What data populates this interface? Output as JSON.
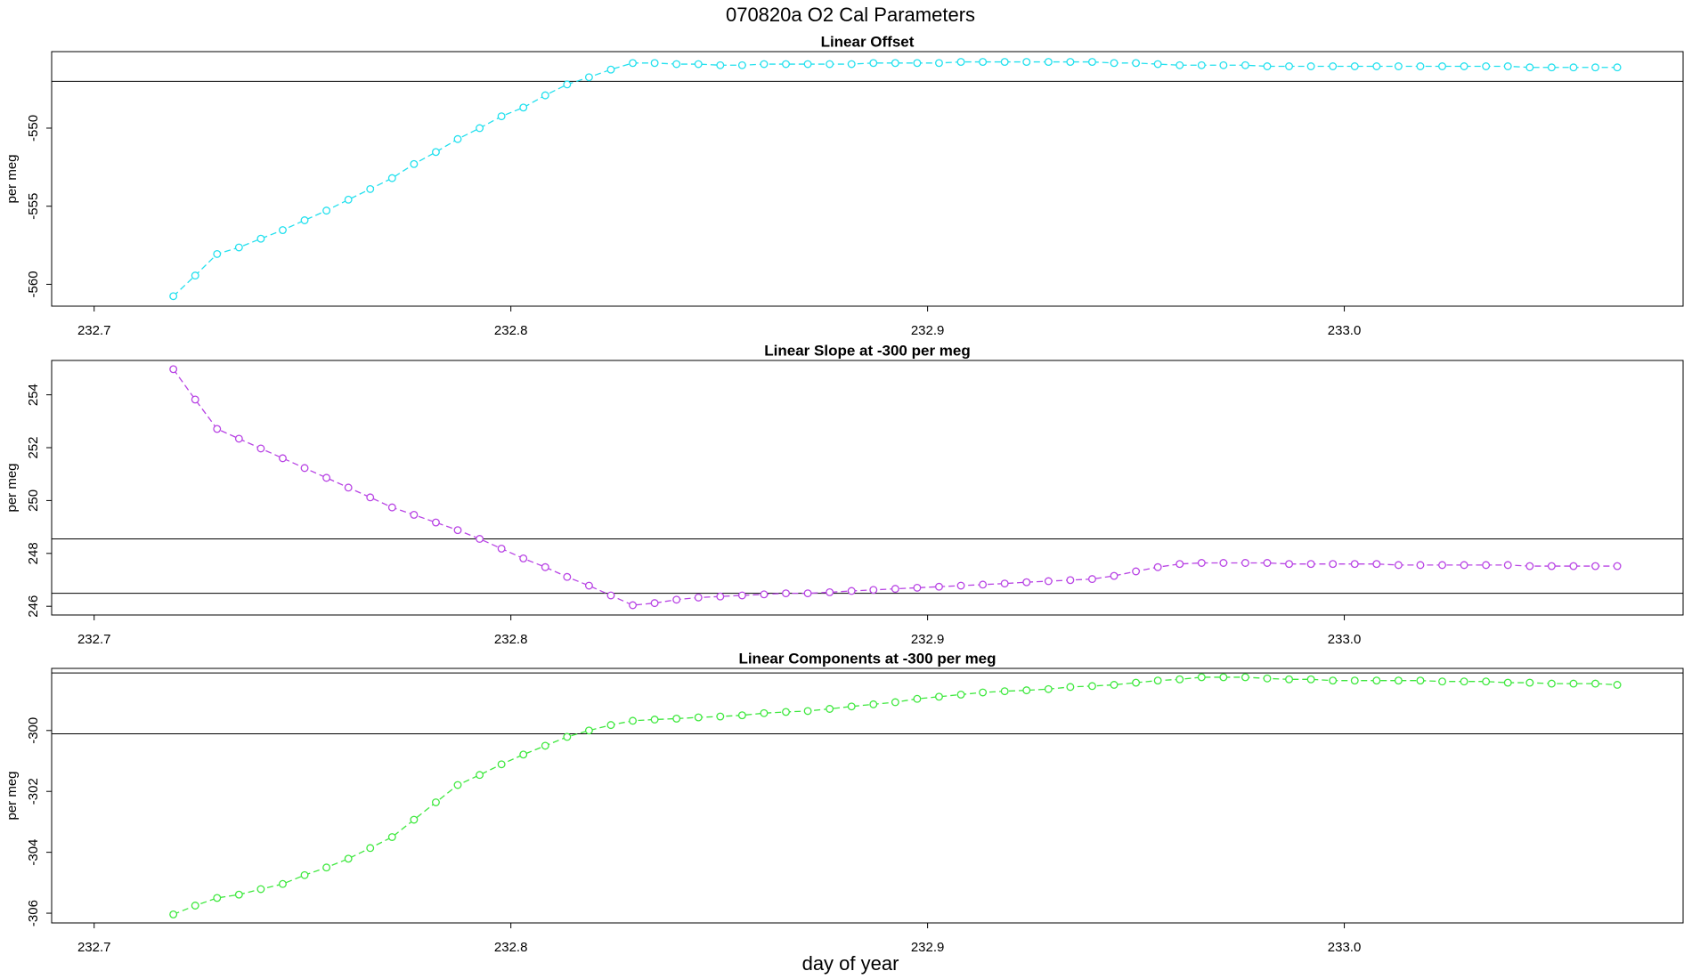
{
  "title": "070820a   O2 Cal Parameters",
  "xlabel": "day of year",
  "chart_data": [
    {
      "type": "line",
      "title": "Linear Offset",
      "ylabel": "per meg",
      "x": [
        232.719,
        232.72425,
        232.7295,
        232.73475,
        232.74,
        232.74525,
        232.7505,
        232.75575,
        232.761,
        232.76625,
        232.7715,
        232.77675,
        232.782,
        232.78725,
        232.7925,
        232.79775,
        232.803,
        232.80825,
        232.8135,
        232.81875,
        232.824,
        232.82925,
        232.8345,
        232.83975,
        232.845,
        232.85025,
        232.8555,
        232.86075,
        232.866,
        232.87125,
        232.8765,
        232.88175,
        232.887,
        232.89225,
        232.8975,
        232.90275,
        232.908,
        232.91325,
        232.9185,
        232.92375,
        232.929,
        232.93425,
        232.9395,
        232.94475,
        232.95,
        232.95525,
        232.9605,
        232.96575,
        232.971,
        232.97625,
        232.9815,
        232.98675,
        232.992,
        232.99725,
        233.0025,
        233.00775,
        233.013,
        233.01825,
        233.0235,
        233.02875,
        233.034,
        233.03925,
        233.0445,
        233.04975,
        233.055,
        233.06025,
        233.0655
      ],
      "series": [
        {
          "color": "#22e0ee",
          "values": [
            -560.76,
            -559.44,
            -558.06,
            -557.64,
            -557.08,
            -556.53,
            -555.9,
            -555.28,
            -554.58,
            -553.9,
            -553.2,
            -552.3,
            -551.53,
            -550.7,
            -550.0,
            -549.24,
            -548.68,
            -547.9,
            -547.2,
            -546.74,
            -546.25,
            -545.83,
            -545.83,
            -545.9,
            -545.9,
            -545.97,
            -545.97,
            -545.9,
            -545.9,
            -545.9,
            -545.9,
            -545.9,
            -545.83,
            -545.83,
            -545.83,
            -545.83,
            -545.76,
            -545.76,
            -545.76,
            -545.76,
            -545.76,
            -545.76,
            -545.76,
            -545.83,
            -545.83,
            -545.9,
            -545.97,
            -545.97,
            -545.97,
            -545.97,
            -546.04,
            -546.04,
            -546.04,
            -546.04,
            -546.04,
            -546.04,
            -546.04,
            -546.04,
            -546.04,
            -546.04,
            -546.04,
            -546.04,
            -546.11,
            -546.11,
            -546.11,
            -546.11,
            -546.11
          ]
        }
      ],
      "hlines": [
        -547.0
      ],
      "xlim": [
        232.6898,
        233.0813
      ],
      "xticks": [
        232.7,
        232.8,
        232.9,
        {
          "value": 233,
          "label": "233.0"
        }
      ],
      "ylim": [
        -561.4,
        -545.1
      ],
      "yticks": [
        -560,
        -555,
        -550
      ]
    },
    {
      "type": "line",
      "title": "Linear Slope at -300 per meg",
      "ylabel": "per meg",
      "x": [
        232.719,
        232.72425,
        232.7295,
        232.73475,
        232.74,
        232.74525,
        232.7505,
        232.75575,
        232.761,
        232.76625,
        232.7715,
        232.77675,
        232.782,
        232.78725,
        232.7925,
        232.79775,
        232.803,
        232.80825,
        232.8135,
        232.81875,
        232.824,
        232.82925,
        232.8345,
        232.83975,
        232.845,
        232.85025,
        232.8555,
        232.86075,
        232.866,
        232.87125,
        232.8765,
        232.88175,
        232.887,
        232.89225,
        232.8975,
        232.90275,
        232.908,
        232.91325,
        232.9185,
        232.92375,
        232.929,
        232.93425,
        232.9395,
        232.94475,
        232.95,
        232.95525,
        232.9605,
        232.96575,
        232.971,
        232.97625,
        232.9815,
        232.98675,
        232.992,
        232.99725,
        233.0025,
        233.00775,
        233.013,
        233.01825,
        233.0235,
        233.02875,
        233.034,
        233.03925,
        233.0445,
        233.04975,
        233.055,
        233.06025,
        233.0655
      ],
      "series": [
        {
          "color": "#b844e4",
          "values": [
            254.97,
            253.82,
            252.71,
            252.34,
            251.97,
            251.6,
            251.23,
            250.86,
            250.49,
            250.12,
            249.74,
            249.46,
            249.17,
            248.88,
            248.55,
            248.18,
            247.81,
            247.48,
            247.11,
            246.78,
            246.41,
            246.04,
            246.12,
            246.25,
            246.33,
            246.37,
            246.41,
            246.45,
            246.49,
            246.49,
            246.53,
            246.58,
            246.62,
            246.66,
            246.7,
            246.74,
            246.78,
            246.82,
            246.86,
            246.91,
            246.95,
            246.99,
            247.03,
            247.15,
            247.32,
            247.48,
            247.6,
            247.64,
            247.64,
            247.64,
            247.64,
            247.6,
            247.6,
            247.6,
            247.6,
            247.6,
            247.56,
            247.56,
            247.56,
            247.56,
            247.56,
            247.56,
            247.52,
            247.52,
            247.52,
            247.52,
            247.52
          ]
        }
      ],
      "hlines": [
        248.55,
        246.49
      ],
      "xlim": [
        232.6898,
        233.0813
      ],
      "xticks": [
        232.7,
        232.8,
        232.9,
        {
          "value": 233,
          "label": "233.0"
        }
      ],
      "ylim": [
        245.67,
        255.3
      ],
      "yticks": [
        246,
        248,
        250,
        252,
        254
      ]
    },
    {
      "type": "line",
      "title": "Linear Components at -300 per meg",
      "ylabel": "per meg",
      "x": [
        232.719,
        232.72425,
        232.7295,
        232.73475,
        232.74,
        232.74525,
        232.7505,
        232.75575,
        232.761,
        232.76625,
        232.7715,
        232.77675,
        232.782,
        232.78725,
        232.7925,
        232.79775,
        232.803,
        232.80825,
        232.8135,
        232.81875,
        232.824,
        232.82925,
        232.8345,
        232.83975,
        232.845,
        232.85025,
        232.8555,
        232.86075,
        232.866,
        232.87125,
        232.8765,
        232.88175,
        232.887,
        232.89225,
        232.8975,
        232.90275,
        232.908,
        232.91325,
        232.9185,
        232.92375,
        232.929,
        232.93425,
        232.9395,
        232.94475,
        232.95,
        232.95525,
        232.9605,
        232.96575,
        232.971,
        232.97625,
        232.9815,
        232.98675,
        232.992,
        232.99725,
        233.0025,
        233.00775,
        233.013,
        233.01825,
        233.0235,
        233.02875,
        233.034,
        233.03925,
        233.0445,
        233.04975,
        233.055,
        233.06025,
        233.0655
      ],
      "series": [
        {
          "color": "#3ee83e",
          "values": [
            -306.04,
            -305.75,
            -305.5,
            -305.39,
            -305.21,
            -305.04,
            -304.75,
            -304.5,
            -304.21,
            -303.86,
            -303.5,
            -302.93,
            -302.36,
            -301.79,
            -301.46,
            -301.11,
            -300.79,
            -300.5,
            -300.21,
            -300.0,
            -299.82,
            -299.68,
            -299.64,
            -299.61,
            -299.57,
            -299.54,
            -299.5,
            -299.43,
            -299.39,
            -299.36,
            -299.29,
            -299.21,
            -299.14,
            -299.07,
            -298.96,
            -298.89,
            -298.82,
            -298.75,
            -298.71,
            -298.68,
            -298.64,
            -298.57,
            -298.54,
            -298.5,
            -298.43,
            -298.36,
            -298.32,
            -298.25,
            -298.25,
            -298.25,
            -298.29,
            -298.32,
            -298.32,
            -298.36,
            -298.36,
            -298.36,
            -298.36,
            -298.36,
            -298.39,
            -298.39,
            -298.39,
            -298.43,
            -298.43,
            -298.46,
            -298.46,
            -298.46,
            -298.5
          ]
        }
      ],
      "hlines": [
        -298.11,
        -300.11
      ],
      "xlim": [
        232.6898,
        233.0813
      ],
      "xticks": [
        232.7,
        232.8,
        232.9,
        {
          "value": 233,
          "label": "233.0"
        }
      ],
      "ylim": [
        -306.32,
        -297.96
      ],
      "yticks": [
        -306,
        -304,
        -302,
        -300
      ]
    }
  ]
}
